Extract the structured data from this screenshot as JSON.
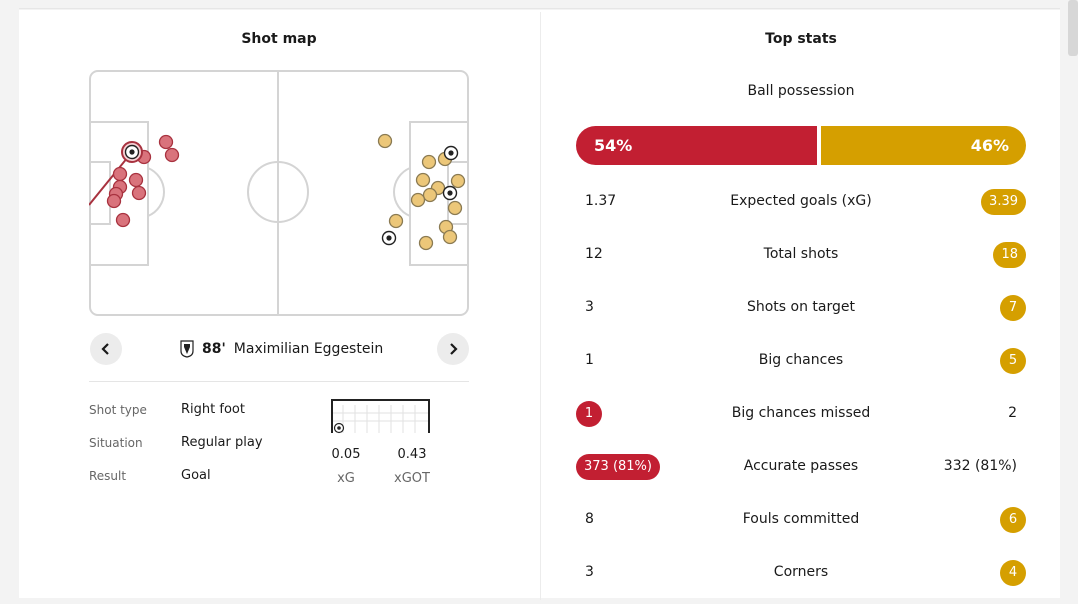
{
  "shot_map": {
    "title": "Shot map",
    "player": {
      "minute": "88'",
      "name": "Maximilian Eggestein"
    },
    "details": [
      {
        "label": "Shot type",
        "value": "Right foot"
      },
      {
        "label": "Situation",
        "value": "Regular play"
      },
      {
        "label": "Result",
        "value": "Goal"
      }
    ],
    "xg": {
      "value": "0.05",
      "label": "xG"
    },
    "xgot": {
      "value": "0.43",
      "label": "xGOT"
    },
    "prev_icon": "chevron-left-icon",
    "next_icon": "chevron-right-icon",
    "colors": {
      "home": "#d9737c",
      "home_stroke": "#a8323f",
      "away": "#ecc779",
      "away_stroke": "#8a7a52"
    }
  },
  "top_stats": {
    "title": "Top stats",
    "possession": {
      "label": "Ball possession",
      "home": "54%",
      "away": "46%",
      "home_value": 54,
      "away_value": 46
    },
    "rows": [
      {
        "label": "Expected goals (xG)",
        "home": "1.37",
        "away": "3.39",
        "highlight": "away"
      },
      {
        "label": "Total shots",
        "home": "12",
        "away": "18",
        "highlight": "away"
      },
      {
        "label": "Shots on target",
        "home": "3",
        "away": "7",
        "highlight": "away"
      },
      {
        "label": "Big chances",
        "home": "1",
        "away": "5",
        "highlight": "away"
      },
      {
        "label": "Big chances missed",
        "home": "1",
        "away": "2",
        "highlight": "home"
      },
      {
        "label": "Accurate passes",
        "home": "373 (81%)",
        "away": "332 (81%)",
        "highlight": "home"
      },
      {
        "label": "Fouls committed",
        "home": "8",
        "away": "6",
        "highlight": "away"
      },
      {
        "label": "Corners",
        "home": "3",
        "away": "4",
        "highlight": "away"
      }
    ],
    "colors": {
      "home": "#c21f32",
      "away": "#d59f00"
    }
  }
}
